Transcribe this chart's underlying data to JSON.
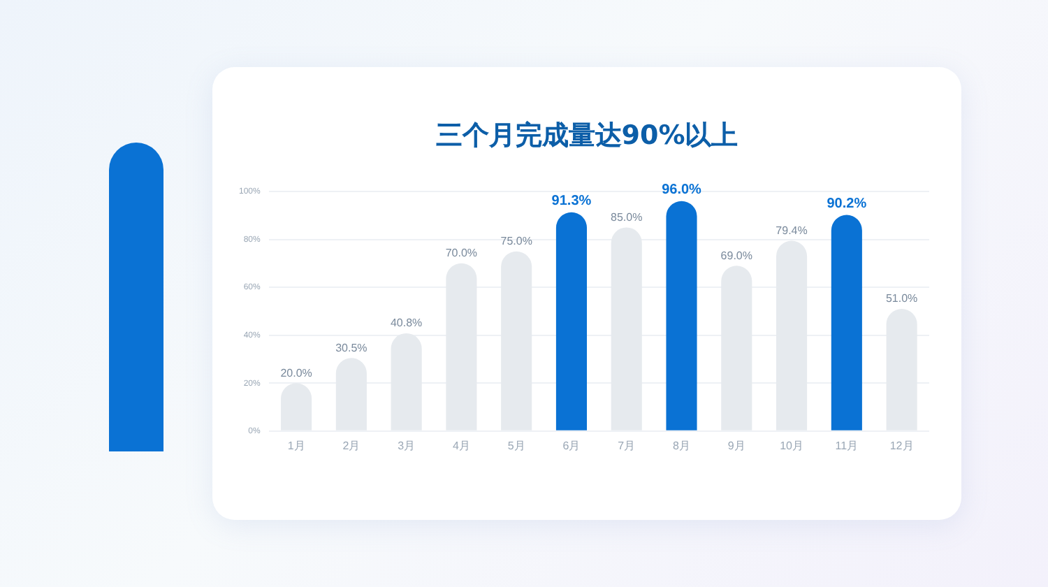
{
  "chart_data": {
    "type": "bar",
    "title": "三个月完成量达90%以上",
    "categories": [
      "1月",
      "2月",
      "3月",
      "4月",
      "5月",
      "6月",
      "7月",
      "8月",
      "9月",
      "10月",
      "11月",
      "12月"
    ],
    "values": [
      20.0,
      30.5,
      40.8,
      70.0,
      75.0,
      91.3,
      85.0,
      96.0,
      69.0,
      79.4,
      90.2,
      51.0
    ],
    "colors": [
      "#e6eaee",
      "#e6eaee",
      "#e6eaee",
      "#e6eaee",
      "#e6eaee",
      "#0a72d4",
      "#e6eaee",
      "#0a72d4",
      "#e6eaee",
      "#e6eaee",
      "#0a72d4",
      "#e6eaee"
    ],
    "value_labels": [
      "20.0%",
      "30.5%",
      "40.8%",
      "70.0%",
      "75.0%",
      "91.3%",
      "85.0%",
      "96.0%",
      "69.0%",
      "79.4%",
      "90.2%",
      "51.0%"
    ],
    "ylim": [
      0,
      100
    ],
    "yticks": [
      {
        "value": 0,
        "label": "0%"
      },
      {
        "value": 20,
        "label": "20%"
      },
      {
        "value": 40,
        "label": "40%"
      },
      {
        "value": 60,
        "label": "60%"
      },
      {
        "value": 80,
        "label": "80%"
      },
      {
        "value": 100,
        "label": "100%"
      }
    ],
    "grid": "y",
    "legend": false
  }
}
